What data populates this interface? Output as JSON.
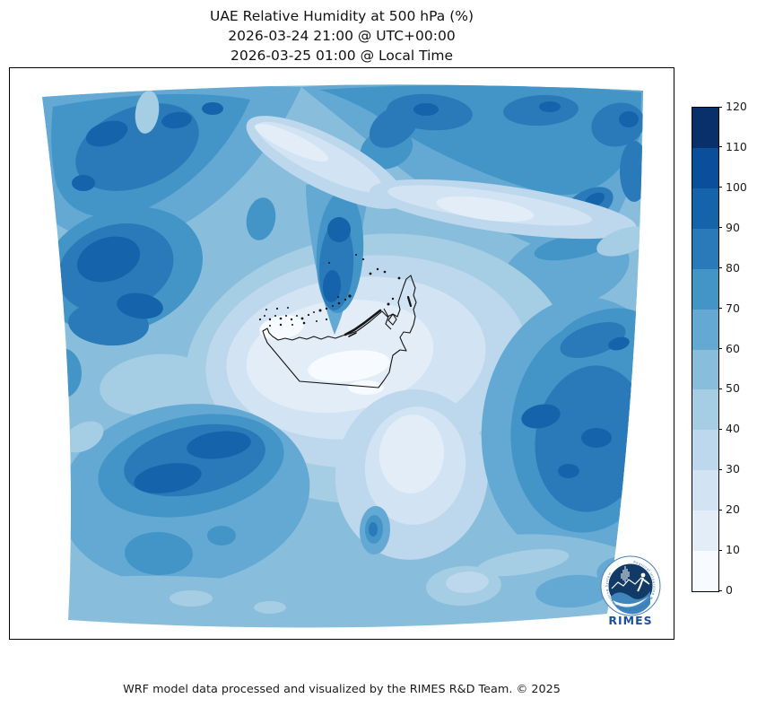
{
  "title": {
    "line1": "UAE Relative Humidity at 500 hPa (%)",
    "line2": "2026-03-24 21:00 @ UTC+00:00",
    "line3": "2026-03-25 01:00 @ Local Time"
  },
  "footer": {
    "credit": "WRF model data processed and visualized by the RIMES R&D Team. © 2025"
  },
  "colorbar": {
    "min": 0,
    "max": 120,
    "step": 10,
    "ticks": [
      0,
      10,
      20,
      30,
      40,
      50,
      60,
      70,
      80,
      90,
      100,
      110,
      120
    ],
    "segment_colors": [
      "#f7fbff",
      "#e3edf8",
      "#d2e3f3",
      "#bdd7ec",
      "#a5cde3",
      "#88bedc",
      "#64a9d3",
      "#4395c7",
      "#2a7ab9",
      "#1563aa",
      "#094f9c",
      "#08306b"
    ],
    "frame_color": "#000000"
  },
  "map": {
    "outline_country": "United Arab Emirates",
    "border_color": "#141414",
    "background_outside_domain": "#ffffff"
  },
  "logo": {
    "wordmark": "RIMES",
    "ring_text": "Regional Integrated Multi-Hazard Early Warning System",
    "navy": "#123a66",
    "wave_blue": "#3e86bb",
    "text_blue": "#1d4f9f",
    "ring_text_blue": "#2e6fae"
  },
  "chart_data": {
    "type": "heatmap",
    "subtype": "filled-contour-map",
    "title": "UAE Relative Humidity at 500 hPa (%)",
    "valid_time_utc": "2026-03-24 21:00 @ UTC+00:00",
    "valid_time_local": "2026-03-25 01:00 @ Local Time",
    "variable": "relative humidity",
    "pressure_level_hPa": 500,
    "units": "%",
    "colormap": "Blues",
    "contour_levels": [
      0,
      10,
      20,
      30,
      40,
      50,
      60,
      70,
      80,
      90,
      100,
      110,
      120
    ],
    "colorbar_range": [
      0,
      120
    ],
    "legend_position": "right-vertical",
    "grid": false,
    "domain_shape": "curved WRF model domain over the UAE and surrounding Gulf region",
    "approx_field_features": [
      {
        "area": "northwest corner band",
        "rh_percent": "60-100"
      },
      {
        "area": "light streak upper-left edge",
        "rh_percent": "30-40"
      },
      {
        "area": "west-central maximum near left edge",
        "rh_percent": "70-100"
      },
      {
        "area": "top edge band across north",
        "rh_percent": "60-100"
      },
      {
        "area": "pale diagonal dry slot from west-center to east edge",
        "rh_percent": "10-30"
      },
      {
        "area": "moist tongue descending to UAE north coast",
        "rh_percent": "60-100"
      },
      {
        "area": "central basin around UAE interior",
        "rh_percent": "0-20"
      },
      {
        "area": "east-central large maximum",
        "rh_percent": "60-100"
      },
      {
        "area": "southwest elongated maximum",
        "rh_percent": "60-100"
      },
      {
        "area": "south-central pale corridor",
        "rh_percent": "20-40"
      },
      {
        "area": "bottom edge strip",
        "rh_percent": "40-60"
      },
      {
        "area": "bottom-right corner",
        "rh_percent": "40-60"
      }
    ]
  }
}
